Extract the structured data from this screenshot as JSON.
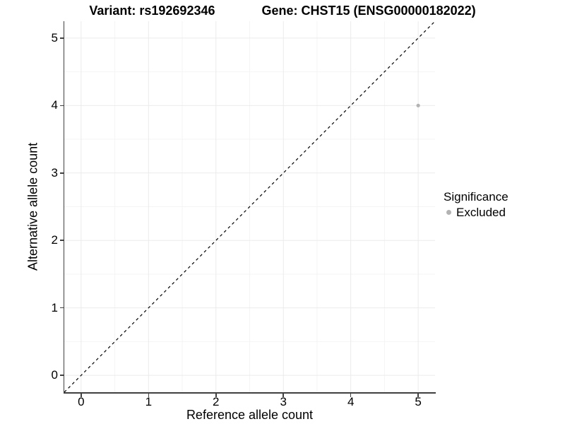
{
  "chart_data": {
    "type": "scatter",
    "title_left": "Variant: rs192692346",
    "title_right": "Gene: CHST15 (ENSG00000182022)",
    "xlabel": "Reference allele count",
    "ylabel": "Alternative allele count",
    "xlim": [
      -0.25,
      5.25
    ],
    "ylim": [
      -0.25,
      5.25
    ],
    "x_ticks": [
      0,
      1,
      2,
      3,
      4,
      5
    ],
    "y_ticks": [
      0,
      1,
      2,
      3,
      4,
      5
    ],
    "x_minor_ticks": [
      0.5,
      1.5,
      2.5,
      3.5,
      4.5
    ],
    "y_minor_ticks": [
      0.5,
      1.5,
      2.5,
      3.5,
      4.5
    ],
    "grid": true,
    "reference_line": {
      "slope": 1,
      "intercept": 0,
      "linestyle": "dashed",
      "color": "#000000"
    },
    "series": [
      {
        "name": "Excluded",
        "color": "#b3b3b3",
        "points": [
          {
            "x": 5,
            "y": 4
          }
        ]
      }
    ],
    "legend": {
      "title": "Significance",
      "position": "right",
      "items": [
        {
          "label": "Excluded",
          "color": "#b3b3b3"
        }
      ]
    }
  },
  "colors": {
    "background": "#ffffff",
    "grid_major": "#ebebeb",
    "grid_minor": "#f4f4f4",
    "axis": "#404040",
    "text": "#000000",
    "point": "#b3b3b3"
  }
}
